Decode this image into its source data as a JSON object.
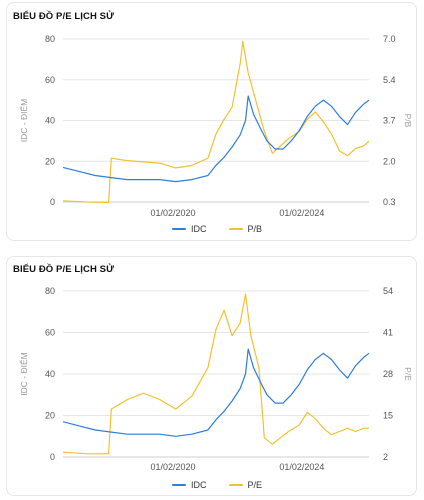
{
  "colors": {
    "idc": "#2f7ed8",
    "pe": "#f2c12e",
    "grid": "#e6e6e6",
    "axis_text": "#555555"
  },
  "chart_data": [
    {
      "type": "line",
      "title": "BIỂU ĐỒ P/E LỊCH SỬ",
      "ylabel_left": "IDC - ĐIỂM",
      "ylabel_right": "P/B",
      "y_left_ticks": [
        "0",
        "20",
        "40",
        "60",
        "80"
      ],
      "y_left_range": [
        0,
        80
      ],
      "y_right_ticks": [
        "0.3",
        "2.0",
        "3.7",
        "5.4",
        "7.0"
      ],
      "y_right_range": [
        0.3,
        7.0
      ],
      "x_ticks": [
        "01/02/2020",
        "01/02/2024"
      ],
      "x_range": [
        "2016-09",
        "2026-03"
      ],
      "grid": true,
      "legend_position": "bottom-center",
      "legend": [
        "IDC",
        "P/B"
      ],
      "series": [
        {
          "name": "IDC",
          "axis": "left",
          "points": [
            [
              "2016-09",
              17
            ],
            [
              "2017-03",
              15
            ],
            [
              "2017-09",
              13
            ],
            [
              "2018-03",
              12
            ],
            [
              "2018-09",
              11
            ],
            [
              "2019-03",
              11
            ],
            [
              "2019-09",
              11
            ],
            [
              "2020-03",
              10
            ],
            [
              "2020-09",
              11
            ],
            [
              "2021-03",
              13
            ],
            [
              "2021-06",
              18
            ],
            [
              "2021-09",
              22
            ],
            [
              "2021-12",
              27
            ],
            [
              "2022-03",
              33
            ],
            [
              "2022-05",
              40
            ],
            [
              "2022-06",
              52
            ],
            [
              "2022-08",
              43
            ],
            [
              "2022-11",
              35
            ],
            [
              "2023-01",
              30
            ],
            [
              "2023-04",
              26
            ],
            [
              "2023-07",
              26
            ],
            [
              "2023-10",
              30
            ],
            [
              "2024-01",
              35
            ],
            [
              "2024-04",
              42
            ],
            [
              "2024-07",
              47
            ],
            [
              "2024-10",
              50
            ],
            [
              "2025-01",
              47
            ],
            [
              "2025-04",
              42
            ],
            [
              "2025-07",
              38
            ],
            [
              "2025-10",
              44
            ],
            [
              "2026-01",
              48
            ],
            [
              "2026-03",
              50
            ]
          ]
        },
        {
          "name": "P/B",
          "axis": "right",
          "points": [
            [
              "2016-09",
              0.35
            ],
            [
              "2017-06",
              0.3
            ],
            [
              "2018-02",
              0.28
            ],
            [
              "2018-03",
              2.1
            ],
            [
              "2018-09",
              2.0
            ],
            [
              "2019-03",
              1.95
            ],
            [
              "2019-09",
              1.9
            ],
            [
              "2020-03",
              1.7
            ],
            [
              "2020-09",
              1.8
            ],
            [
              "2021-03",
              2.1
            ],
            [
              "2021-06",
              3.1
            ],
            [
              "2021-09",
              3.7
            ],
            [
              "2021-12",
              4.2
            ],
            [
              "2022-03",
              6.0
            ],
            [
              "2022-04",
              6.9
            ],
            [
              "2022-06",
              5.6
            ],
            [
              "2022-09",
              4.4
            ],
            [
              "2022-12",
              3.2
            ],
            [
              "2023-03",
              2.3
            ],
            [
              "2023-06",
              2.6
            ],
            [
              "2023-09",
              2.9
            ],
            [
              "2024-01",
              3.2
            ],
            [
              "2024-04",
              3.7
            ],
            [
              "2024-07",
              4.0
            ],
            [
              "2024-10",
              3.6
            ],
            [
              "2025-01",
              3.1
            ],
            [
              "2025-04",
              2.4
            ],
            [
              "2025-07",
              2.2
            ],
            [
              "2025-10",
              2.5
            ],
            [
              "2026-01",
              2.6
            ],
            [
              "2026-03",
              2.8
            ]
          ]
        }
      ]
    },
    {
      "type": "line",
      "title": "BIỂU ĐỒ P/E LỊCH SỬ",
      "ylabel_left": "IDC - ĐIỂM",
      "ylabel_right": "P/E",
      "y_left_ticks": [
        "0",
        "20",
        "40",
        "60",
        "80"
      ],
      "y_left_range": [
        0,
        80
      ],
      "y_right_ticks": [
        "2",
        "15",
        "28",
        "41",
        "54"
      ],
      "y_right_range": [
        2,
        54
      ],
      "x_ticks": [
        "01/02/2020",
        "01/02/2024"
      ],
      "x_range": [
        "2016-09",
        "2026-03"
      ],
      "grid": true,
      "legend_position": "bottom-center",
      "legend": [
        "IDC",
        "P/E"
      ],
      "series": [
        {
          "name": "IDC",
          "axis": "left",
          "points": [
            [
              "2016-09",
              17
            ],
            [
              "2017-03",
              15
            ],
            [
              "2017-09",
              13
            ],
            [
              "2018-03",
              12
            ],
            [
              "2018-09",
              11
            ],
            [
              "2019-03",
              11
            ],
            [
              "2019-09",
              11
            ],
            [
              "2020-03",
              10
            ],
            [
              "2020-09",
              11
            ],
            [
              "2021-03",
              13
            ],
            [
              "2021-06",
              18
            ],
            [
              "2021-09",
              22
            ],
            [
              "2021-12",
              27
            ],
            [
              "2022-03",
              33
            ],
            [
              "2022-05",
              40
            ],
            [
              "2022-06",
              52
            ],
            [
              "2022-08",
              43
            ],
            [
              "2022-11",
              35
            ],
            [
              "2023-01",
              30
            ],
            [
              "2023-04",
              26
            ],
            [
              "2023-07",
              26
            ],
            [
              "2023-10",
              30
            ],
            [
              "2024-01",
              35
            ],
            [
              "2024-04",
              42
            ],
            [
              "2024-07",
              47
            ],
            [
              "2024-10",
              50
            ],
            [
              "2025-01",
              47
            ],
            [
              "2025-04",
              42
            ],
            [
              "2025-07",
              38
            ],
            [
              "2025-10",
              44
            ],
            [
              "2026-01",
              48
            ],
            [
              "2026-03",
              50
            ]
          ]
        },
        {
          "name": "P/E",
          "axis": "right",
          "points": [
            [
              "2016-09",
              3.5
            ],
            [
              "2017-06",
              3.0
            ],
            [
              "2018-02",
              3.0
            ],
            [
              "2018-03",
              17
            ],
            [
              "2018-09",
              20
            ],
            [
              "2019-03",
              22
            ],
            [
              "2019-09",
              20
            ],
            [
              "2020-03",
              17
            ],
            [
              "2020-09",
              21
            ],
            [
              "2021-03",
              30
            ],
            [
              "2021-06",
              42
            ],
            [
              "2021-09",
              48
            ],
            [
              "2021-12",
              40
            ],
            [
              "2022-03",
              44
            ],
            [
              "2022-05",
              53
            ],
            [
              "2022-07",
              40
            ],
            [
              "2022-10",
              30
            ],
            [
              "2022-12",
              8
            ],
            [
              "2023-03",
              6
            ],
            [
              "2023-06",
              8
            ],
            [
              "2023-09",
              10
            ],
            [
              "2024-01",
              12
            ],
            [
              "2024-04",
              16
            ],
            [
              "2024-07",
              14
            ],
            [
              "2024-10",
              11
            ],
            [
              "2025-01",
              9
            ],
            [
              "2025-04",
              10
            ],
            [
              "2025-07",
              11
            ],
            [
              "2025-10",
              10
            ],
            [
              "2026-01",
              11
            ],
            [
              "2026-03",
              11
            ]
          ]
        }
      ]
    }
  ]
}
